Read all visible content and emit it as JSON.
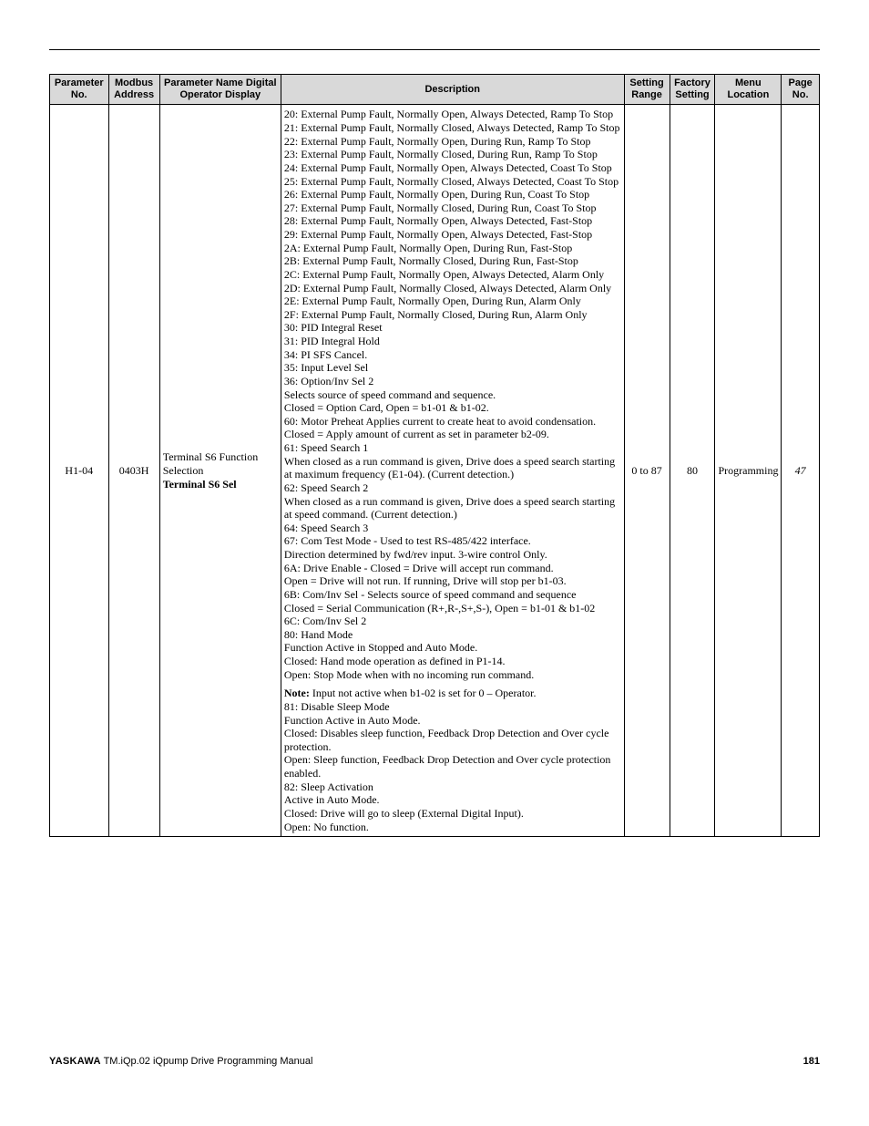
{
  "colors": {
    "header_bg": "#d9d9d9",
    "border": "#000000",
    "text": "#000000",
    "page_bg": "#ffffff"
  },
  "table": {
    "headers": {
      "param_no": "Parameter No.",
      "modbus": "Modbus Address",
      "name": "Parameter Name Digital Operator Display",
      "description": "Description",
      "setting_range": "Setting Range",
      "factory": "Factory Setting",
      "menu": "Menu Location",
      "page": "Page No."
    },
    "row": {
      "param_no": "H1-04",
      "modbus": "0403H",
      "name_l1": "Terminal S6 Function",
      "name_l2": "Selection",
      "name_l3": "Terminal S6 Sel",
      "setting_range": "0 to 87",
      "factory": "80",
      "menu": "Programming",
      "page": "47",
      "desc": {
        "d20": "20: External Pump Fault, Normally Open, Always Detected, Ramp To Stop",
        "d21": "21: External Pump Fault, Normally Closed, Always Detected, Ramp To Stop",
        "d22": "22: External Pump Fault, Normally Open, During Run, Ramp To Stop",
        "d23": "23: External Pump Fault, Normally Closed, During Run, Ramp To Stop",
        "d24": "24: External Pump Fault, Normally Open, Always Detected, Coast To Stop",
        "d25": "25: External Pump Fault, Normally Closed, Always Detected, Coast To Stop",
        "d26": "26: External Pump Fault, Normally Open, During Run, Coast To Stop",
        "d27": "27: External Pump Fault, Normally Closed, During Run, Coast To Stop",
        "d28": "28: External Pump Fault, Normally Open, Always Detected, Fast-Stop",
        "d29": "29: External Pump Fault, Normally Open, Always Detected, Fast-Stop",
        "d2A": "2A: External Pump Fault, Normally Open, During Run, Fast-Stop",
        "d2B": "2B: External Pump Fault, Normally Closed, During Run, Fast-Stop",
        "d2C": "2C: External Pump Fault, Normally Open, Always Detected, Alarm Only",
        "d2D": "2D: External Pump Fault, Normally Closed, Always Detected, Alarm Only",
        "d2E": "2E: External Pump Fault, Normally Open, During Run, Alarm Only",
        "d2F": "2F: External Pump Fault, Normally Closed, During Run, Alarm Only",
        "d30": "30: PID Integral Reset",
        "d31": "31: PID Integral Hold",
        "d34": "34: PI SFS Cancel.",
        "d35": "35: Input Level Sel",
        "d36a": "36: Option/Inv Sel 2",
        "d36b": "Selects source of speed command and sequence.",
        "d36c": "Closed = Option Card, Open = b1-01 & b1-02.",
        "d60a": "60: Motor Preheat Applies current to create heat to avoid condensation.",
        "d60b": "Closed = Apply amount of current as set in parameter b2-09.",
        "d61a": "61: Speed Search 1",
        "d61b": "When closed as a run command is given, Drive does a speed search starting at maximum frequency (E1-04). (Current detection.)",
        "d62a": "62: Speed Search 2",
        "d62b": "When closed as a run command is given, Drive does a speed search starting at speed command. (Current detection.)",
        "d64": "64: Speed Search 3",
        "d67a": "67: Com Test Mode - Used to test RS-485/422 interface.",
        "d67b": "Direction determined by fwd/rev input. 3-wire control Only.",
        "d6Aa": "6A: Drive Enable - Closed = Drive will accept run command.",
        "d6Ab": "Open = Drive will not run. If running, Drive will stop per b1-03.",
        "d6Ba": "6B: Com/Inv Sel - Selects source of speed command and sequence",
        "d6Bb": "Closed = Serial Communication (R+,R-,S+,S-), Open = b1-01 & b1-02",
        "d6C": "6C: Com/Inv Sel 2",
        "d80a": "80: Hand Mode",
        "d80b": "Function Active in Stopped and Auto Mode.",
        "d80c": "Closed: Hand mode operation as defined in P1-14.",
        "d80d": "Open: Stop Mode when with no incoming run command.",
        "note_label": "Note:",
        "note_text": " Input not active when b1-02 is set for 0 – Operator.",
        "d81a": "81: Disable Sleep Mode",
        "d81b": "Function Active in Auto Mode.",
        "d81c": "Closed: Disables sleep function, Feedback Drop Detection and Over cycle protection.",
        "d81d": "Open: Sleep function, Feedback Drop Detection and Over cycle protection enabled.",
        "d82a": "82: Sleep Activation",
        "d82b": "Active in Auto Mode.",
        "d82c": "Closed: Drive will go to sleep (External Digital Input).",
        "d82d": "Open: No function."
      }
    }
  },
  "footer": {
    "brand": "YASKAWA",
    "title": " TM.iQp.02 iQpump Drive Programming Manual",
    "page": "181"
  }
}
